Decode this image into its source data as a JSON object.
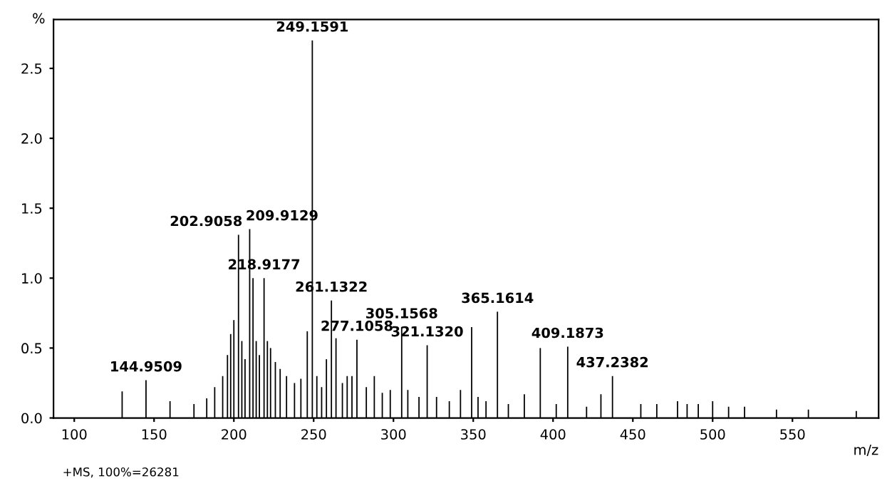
{
  "chart_data": {
    "type": "bar",
    "xlabel": "m/z",
    "ylabel": "%",
    "x": [
      130,
      144.95,
      160,
      175,
      183,
      188,
      193,
      196,
      198,
      200,
      202.91,
      205,
      207,
      209.91,
      212,
      214,
      216,
      218.92,
      221,
      223,
      226,
      229,
      233,
      238,
      242,
      246,
      249.16,
      252,
      255,
      258,
      261.13,
      264,
      268,
      271,
      274,
      277.11,
      283,
      288,
      293,
      298,
      305.16,
      309,
      316,
      321.13,
      327,
      335,
      342,
      349,
      353,
      358,
      365.16,
      372,
      382,
      392,
      402,
      409.19,
      421,
      430,
      437.24,
      455,
      465,
      478,
      484,
      491,
      500,
      510,
      520,
      540,
      560,
      590
    ],
    "series": [
      {
        "color": "#000000",
        "values": [
          0.19,
          0.27,
          0.12,
          0.1,
          0.14,
          0.22,
          0.3,
          0.45,
          0.6,
          0.7,
          1.31,
          0.55,
          0.42,
          1.35,
          1.0,
          0.55,
          0.45,
          1.0,
          0.55,
          0.5,
          0.4,
          0.35,
          0.3,
          0.25,
          0.28,
          0.62,
          2.7,
          0.3,
          0.22,
          0.42,
          0.84,
          0.57,
          0.25,
          0.3,
          0.3,
          0.56,
          0.22,
          0.3,
          0.18,
          0.2,
          0.65,
          0.2,
          0.15,
          0.52,
          0.15,
          0.12,
          0.2,
          0.65,
          0.15,
          0.12,
          0.76,
          0.1,
          0.17,
          0.5,
          0.1,
          0.51,
          0.08,
          0.17,
          0.3,
          0.1,
          0.1,
          0.12,
          0.1,
          0.1,
          0.12,
          0.08,
          0.08,
          0.06,
          0.06,
          0.05
        ]
      }
    ],
    "xlim": [
      87,
      604
    ],
    "ylim": [
      0,
      2.85
    ],
    "xticks": [
      100,
      150,
      200,
      250,
      300,
      350,
      400,
      450,
      500,
      550
    ],
    "yticks": [
      {
        "value": 0,
        "label": "0.0"
      },
      {
        "value": 0.5,
        "label": "0.5"
      },
      {
        "value": 1,
        "label": "1.0"
      },
      {
        "value": 1.5,
        "label": "1.5"
      },
      {
        "value": 2,
        "label": "2.0"
      },
      {
        "value": 2.5,
        "label": "2.5"
      }
    ],
    "grid": false,
    "legend": false,
    "annotations": [
      {
        "text": "144.9509",
        "x": 144.95,
        "y": 0.27
      },
      {
        "text": "202.9058",
        "x": 202.91,
        "y": 1.31
      },
      {
        "text": "209.9129",
        "x": 209.91,
        "y": 1.35
      },
      {
        "text": "218.9177",
        "x": 218.92,
        "y": 1.0
      },
      {
        "text": "249.1591",
        "x": 249.16,
        "y": 2.7
      },
      {
        "text": "261.1322",
        "x": 261.13,
        "y": 0.84
      },
      {
        "text": "277.1058",
        "x": 277.11,
        "y": 0.56
      },
      {
        "text": "305.1568",
        "x": 305.16,
        "y": 0.65
      },
      {
        "text": "321.1320",
        "x": 321.13,
        "y": 0.52
      },
      {
        "text": "365.1614",
        "x": 365.16,
        "y": 0.76
      },
      {
        "text": "409.1873",
        "x": 409.19,
        "y": 0.51
      },
      {
        "text": "437.2382",
        "x": 437.24,
        "y": 0.3
      },
      "+MS, 100%=26281"
    ]
  }
}
